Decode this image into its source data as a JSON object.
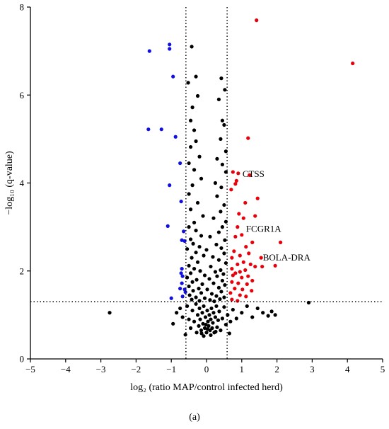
{
  "chart_data": {
    "type": "scatter",
    "title": "",
    "xlabel": "log₂ (ratio MAP/control infected herd)",
    "ylabel": "−log₁₀ (q-value)",
    "xlim": [
      -5,
      5
    ],
    "ylim": [
      0,
      8
    ],
    "x_ticks": [
      -5,
      -4,
      -3,
      -2,
      -1,
      0,
      1,
      2,
      3,
      4,
      5
    ],
    "y_ticks": [
      0,
      2,
      4,
      6,
      8
    ],
    "grid": false,
    "legend": "none",
    "thresholds": {
      "x": [
        -0.585,
        0.585
      ],
      "y": 1.3
    },
    "colors": {
      "up": "#e8000b",
      "down": "#1010e0",
      "ns": "#000000"
    },
    "series": [
      {
        "group": "up",
        "color": "#e8000b",
        "points": [
          [
            1.42,
            7.7
          ],
          [
            4.15,
            6.72
          ],
          [
            1.18,
            5.02
          ],
          [
            0.75,
            4.25
          ],
          [
            0.9,
            4.22
          ],
          [
            1.22,
            4.18
          ],
          [
            0.85,
            4.05
          ],
          [
            0.82,
            3.98
          ],
          [
            0.7,
            3.85
          ],
          [
            1.45,
            3.65
          ],
          [
            1.1,
            3.55
          ],
          [
            0.92,
            3.3
          ],
          [
            1.05,
            3.2
          ],
          [
            1.38,
            3.25
          ],
          [
            0.88,
            3.0
          ],
          [
            2.1,
            2.65
          ],
          [
            1.0,
            2.82
          ],
          [
            0.82,
            2.78
          ],
          [
            1.3,
            2.65
          ],
          [
            1.12,
            2.55
          ],
          [
            0.78,
            2.45
          ],
          [
            1.2,
            2.4
          ],
          [
            0.95,
            2.35
          ],
          [
            0.72,
            2.3
          ],
          [
            1.55,
            2.3
          ],
          [
            1.05,
            2.2
          ],
          [
            0.88,
            2.15
          ],
          [
            1.25,
            2.15
          ],
          [
            1.38,
            2.1
          ],
          [
            1.58,
            2.1
          ],
          [
            1.95,
            2.12
          ],
          [
            0.72,
            2.05
          ],
          [
            1.1,
            2.02
          ],
          [
            0.95,
            1.98
          ],
          [
            0.82,
            1.95
          ],
          [
            0.75,
            1.9
          ],
          [
            1.18,
            1.88
          ],
          [
            1.0,
            1.85
          ],
          [
            1.3,
            1.78
          ],
          [
            0.72,
            1.75
          ],
          [
            0.9,
            1.72
          ],
          [
            1.15,
            1.7
          ],
          [
            0.8,
            1.6
          ],
          [
            1.02,
            1.58
          ],
          [
            1.28,
            1.55
          ],
          [
            0.68,
            1.5
          ],
          [
            0.95,
            1.45
          ],
          [
            1.12,
            1.42
          ],
          [
            0.72,
            1.35
          ],
          [
            0.88,
            1.32
          ]
        ]
      },
      {
        "group": "down",
        "color": "#1010e0",
        "points": [
          [
            -1.05,
            7.15
          ],
          [
            -1.05,
            7.05
          ],
          [
            -1.62,
            7.0
          ],
          [
            -0.95,
            6.42
          ],
          [
            -1.65,
            5.22
          ],
          [
            -1.28,
            5.22
          ],
          [
            -0.88,
            5.05
          ],
          [
            -0.75,
            4.45
          ],
          [
            -1.05,
            3.95
          ],
          [
            -0.72,
            3.58
          ],
          [
            -1.1,
            3.02
          ],
          [
            -0.65,
            2.9
          ],
          [
            -0.7,
            2.7
          ],
          [
            -0.62,
            2.68
          ],
          [
            -0.7,
            2.05
          ],
          [
            -0.72,
            1.95
          ],
          [
            -0.68,
            1.88
          ],
          [
            -0.7,
            1.72
          ],
          [
            -0.75,
            1.6
          ],
          [
            -0.62,
            1.58
          ],
          [
            -1.0,
            1.38
          ],
          [
            -0.68,
            1.42
          ],
          [
            -0.6,
            1.52
          ]
        ]
      },
      {
        "group": "ns",
        "color": "#000000",
        "points": [
          [
            -0.42,
            7.1
          ],
          [
            -0.3,
            6.42
          ],
          [
            0.42,
            6.38
          ],
          [
            0.52,
            6.12
          ],
          [
            -0.52,
            6.28
          ],
          [
            -0.25,
            5.98
          ],
          [
            0.35,
            5.9
          ],
          [
            -0.4,
            5.72
          ],
          [
            -0.45,
            5.42
          ],
          [
            0.45,
            5.42
          ],
          [
            -0.35,
            5.2
          ],
          [
            0.5,
            5.32
          ],
          [
            -0.3,
            4.95
          ],
          [
            0.4,
            5.0
          ],
          [
            -0.45,
            4.82
          ],
          [
            0.55,
            4.72
          ],
          [
            -0.2,
            4.6
          ],
          [
            0.3,
            4.55
          ],
          [
            -0.5,
            4.45
          ],
          [
            0.45,
            4.42
          ],
          [
            -0.35,
            4.3
          ],
          [
            0.55,
            4.25
          ],
          [
            -0.15,
            4.1
          ],
          [
            0.25,
            4.0
          ],
          [
            -0.4,
            3.95
          ],
          [
            0.42,
            3.9
          ],
          [
            -0.5,
            3.75
          ],
          [
            0.3,
            3.7
          ],
          [
            -0.25,
            3.55
          ],
          [
            0.5,
            3.5
          ],
          [
            -0.45,
            3.4
          ],
          [
            0.4,
            3.35
          ],
          [
            -0.1,
            3.25
          ],
          [
            0.2,
            3.2
          ],
          [
            -0.35,
            3.1
          ],
          [
            0.55,
            3.12
          ],
          [
            -0.5,
            3.0
          ],
          [
            0.45,
            3.0
          ],
          [
            -0.3,
            2.92
          ],
          [
            0.35,
            2.88
          ],
          [
            -0.15,
            2.8
          ],
          [
            0.1,
            2.78
          ],
          [
            -0.45,
            2.72
          ],
          [
            0.52,
            2.7
          ],
          [
            -0.38,
            2.62
          ],
          [
            0.28,
            2.6
          ],
          [
            -0.2,
            2.55
          ],
          [
            0.42,
            2.52
          ],
          [
            -0.55,
            2.5
          ],
          [
            0.0,
            2.48
          ],
          [
            -0.3,
            2.42
          ],
          [
            0.5,
            2.4
          ],
          [
            -0.08,
            2.35
          ],
          [
            0.18,
            2.32
          ],
          [
            -0.42,
            2.3
          ],
          [
            0.35,
            2.25
          ],
          [
            -0.25,
            2.2
          ],
          [
            0.55,
            2.18
          ],
          [
            -0.5,
            2.12
          ],
          [
            0.12,
            2.1
          ],
          [
            -0.35,
            2.05
          ],
          [
            0.4,
            2.02
          ],
          [
            -0.18,
            2.0
          ],
          [
            0.25,
            1.98
          ],
          [
            -0.45,
            1.95
          ],
          [
            0.48,
            1.93
          ],
          [
            -0.05,
            1.9
          ],
          [
            0.3,
            1.88
          ],
          [
            -0.55,
            1.85
          ],
          [
            0.08,
            1.82
          ],
          [
            -0.28,
            1.8
          ],
          [
            0.45,
            1.78
          ],
          [
            -0.4,
            1.75
          ],
          [
            0.2,
            1.72
          ],
          [
            -0.12,
            1.7
          ],
          [
            0.52,
            1.68
          ],
          [
            -0.5,
            1.65
          ],
          [
            0.35,
            1.62
          ],
          [
            -0.22,
            1.6
          ],
          [
            0.02,
            1.58
          ],
          [
            -0.38,
            1.55
          ],
          [
            0.42,
            1.53
          ],
          [
            -0.15,
            1.5
          ],
          [
            0.15,
            1.48
          ],
          [
            -0.48,
            1.45
          ],
          [
            0.28,
            1.43
          ],
          [
            -0.3,
            1.4
          ],
          [
            0.5,
            1.4
          ],
          [
            -0.05,
            1.38
          ],
          [
            0.38,
            1.36
          ],
          [
            -0.42,
            1.35
          ],
          [
            0.1,
            1.34
          ],
          [
            -0.2,
            1.32
          ],
          [
            0.22,
            1.31
          ],
          [
            -0.95,
            0.8
          ],
          [
            -0.85,
            1.05
          ],
          [
            -0.75,
            1.15
          ],
          [
            -0.68,
            0.95
          ],
          [
            -0.55,
            1.2
          ],
          [
            -0.5,
            0.9
          ],
          [
            -0.45,
            0.7
          ],
          [
            -0.4,
            1.1
          ],
          [
            -0.35,
            0.85
          ],
          [
            -0.3,
            1.25
          ],
          [
            -0.28,
            0.6
          ],
          [
            -0.25,
            1.0
          ],
          [
            -0.22,
            0.75
          ],
          [
            -0.2,
            1.15
          ],
          [
            -0.18,
            0.9
          ],
          [
            -0.15,
            0.65
          ],
          [
            -0.12,
            1.05
          ],
          [
            -0.1,
            0.8
          ],
          [
            -0.08,
            1.2
          ],
          [
            -0.05,
            0.7
          ],
          [
            -0.03,
            0.95
          ],
          [
            0.0,
            0.6
          ],
          [
            0.02,
            1.1
          ],
          [
            0.04,
            0.85
          ],
          [
            0.06,
            0.75
          ],
          [
            0.08,
            1.0
          ],
          [
            0.1,
            0.65
          ],
          [
            0.12,
            0.9
          ],
          [
            0.14,
            1.15
          ],
          [
            0.16,
            0.7
          ],
          [
            0.18,
            0.82
          ],
          [
            0.2,
            1.05
          ],
          [
            0.22,
            0.6
          ],
          [
            0.25,
            0.95
          ],
          [
            0.28,
            1.2
          ],
          [
            0.3,
            0.72
          ],
          [
            0.33,
            0.88
          ],
          [
            0.36,
            1.08
          ],
          [
            0.4,
            0.65
          ],
          [
            0.45,
            0.92
          ],
          [
            0.5,
            1.18
          ],
          [
            0.55,
            0.78
          ],
          [
            0.6,
            1.0
          ],
          [
            0.68,
            0.85
          ],
          [
            0.75,
            1.12
          ],
          [
            0.85,
            0.92
          ],
          [
            1.0,
            1.05
          ],
          [
            1.15,
            1.2
          ],
          [
            1.3,
            0.95
          ],
          [
            1.45,
            1.15
          ],
          [
            1.6,
            1.05
          ],
          [
            1.75,
            0.98
          ],
          [
            1.85,
            1.08
          ],
          [
            1.95,
            1.0
          ],
          [
            2.9,
            1.28
          ],
          [
            -2.75,
            1.05
          ],
          [
            -0.6,
            0.55
          ],
          [
            0.65,
            0.58
          ],
          [
            -0.08,
            0.52
          ],
          [
            0.12,
            0.54
          ],
          [
            -0.02,
            0.78
          ],
          [
            0.03,
            0.68
          ],
          [
            -0.14,
            0.58
          ],
          [
            0.26,
            0.62
          ]
        ]
      }
    ],
    "annotations": [
      {
        "text": "CTSS",
        "x": 0.9,
        "y": 4.2
      },
      {
        "text": "FCGR1A",
        "x": 1.0,
        "y": 2.95
      },
      {
        "text": "BOLA-DRA",
        "x": 1.48,
        "y": 2.3
      }
    ]
  },
  "caption": "(a)"
}
